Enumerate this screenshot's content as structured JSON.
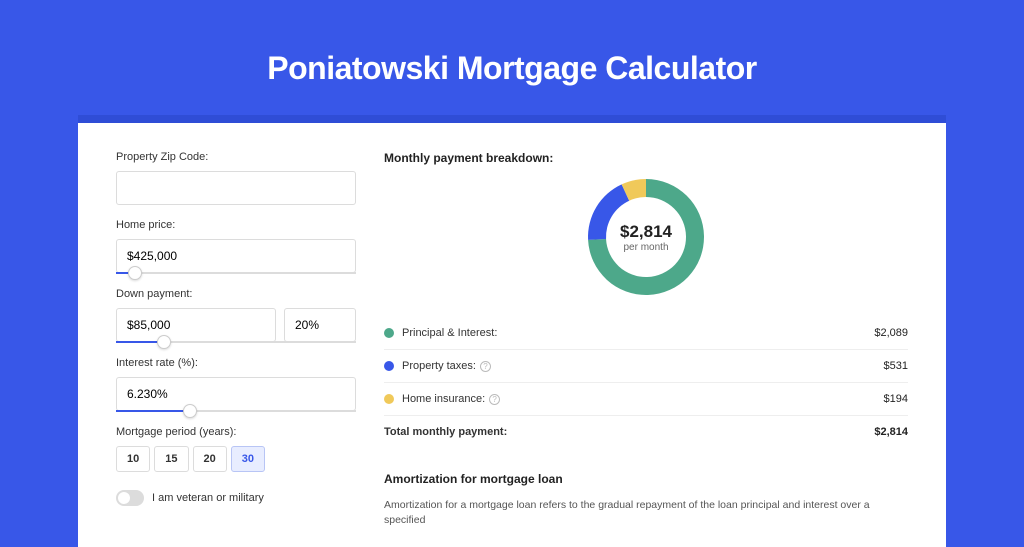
{
  "title": "Poniatowski Mortgage Calculator",
  "colors": {
    "page_bg": "#3857e8",
    "shadow_bg": "#2f4dd6",
    "card_bg": "#ffffff"
  },
  "form": {
    "zip": {
      "label": "Property Zip Code:",
      "value": ""
    },
    "home_price": {
      "label": "Home price:",
      "value": "$425,000",
      "slider_pct": 8
    },
    "down_payment": {
      "label": "Down payment:",
      "amount": "$85,000",
      "pct": "20%",
      "slider_pct": 20
    },
    "interest": {
      "label": "Interest rate (%):",
      "value": "6.230%",
      "slider_pct": 31
    },
    "period": {
      "label": "Mortgage period (years):",
      "options": [
        "10",
        "15",
        "20",
        "30"
      ],
      "selected": "30"
    },
    "veteran": {
      "label": "I am veteran or military",
      "checked": false
    }
  },
  "breakdown": {
    "heading": "Monthly payment breakdown:",
    "donut": {
      "amount": "$2,814",
      "sub": "per month",
      "slices": [
        {
          "color": "#4da88a",
          "pct": 74.2
        },
        {
          "color": "#3857e8",
          "pct": 18.9
        },
        {
          "color": "#f0c95a",
          "pct": 6.9
        }
      ],
      "thickness": 18
    },
    "items": [
      {
        "label": "Principal & Interest:",
        "value": "$2,089",
        "color": "#4da88a",
        "info": false
      },
      {
        "label": "Property taxes:",
        "value": "$531",
        "color": "#3857e8",
        "info": true
      },
      {
        "label": "Home insurance:",
        "value": "$194",
        "color": "#f0c95a",
        "info": true
      }
    ],
    "total": {
      "label": "Total monthly payment:",
      "value": "$2,814"
    }
  },
  "amortization": {
    "heading": "Amortization for mortgage loan",
    "text": "Amortization for a mortgage loan refers to the gradual repayment of the loan principal and interest over a specified"
  }
}
